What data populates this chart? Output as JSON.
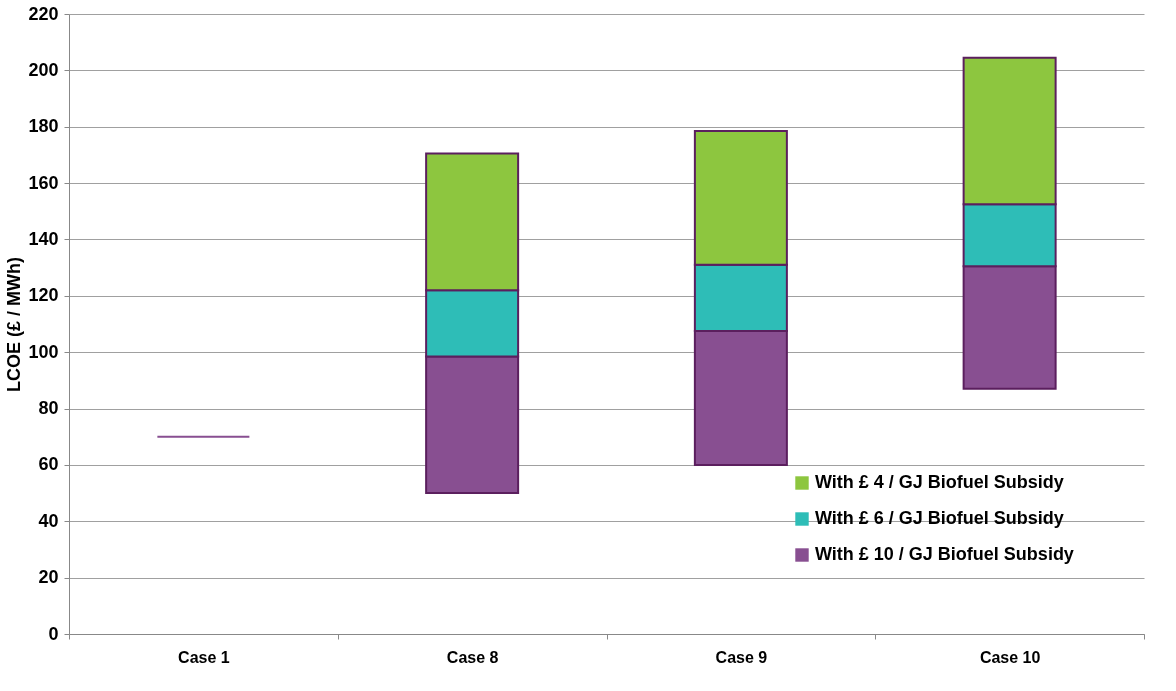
{
  "chart_data": {
    "type": "bar",
    "stacked": true,
    "ylabel": "LCOE (£ / MWh)",
    "categories": [
      "Case 1",
      "Case 8",
      "Case 9",
      "Case 10"
    ],
    "series": [
      {
        "name": "With £ 10 / GJ Biofuel Subsidy",
        "color": "#884f91",
        "base": [
          70,
          50,
          60,
          87
        ],
        "values": [
          0,
          48.5,
          47.5,
          43.5
        ]
      },
      {
        "name": "With £ 6 / GJ Biofuel Subsidy",
        "color": "#2ebdb7",
        "values": [
          null,
          23.5,
          23.5,
          22
        ]
      },
      {
        "name": "With £ 4 / GJ Biofuel Subsidy",
        "color": "#8dc63f",
        "values": [
          null,
          48.5,
          47.5,
          52
        ]
      }
    ],
    "ylim": [
      0,
      220
    ],
    "yticks": [
      0,
      20,
      40,
      60,
      80,
      100,
      120,
      140,
      160,
      180,
      200,
      220
    ],
    "grid": "y",
    "legend": "bottom right"
  }
}
